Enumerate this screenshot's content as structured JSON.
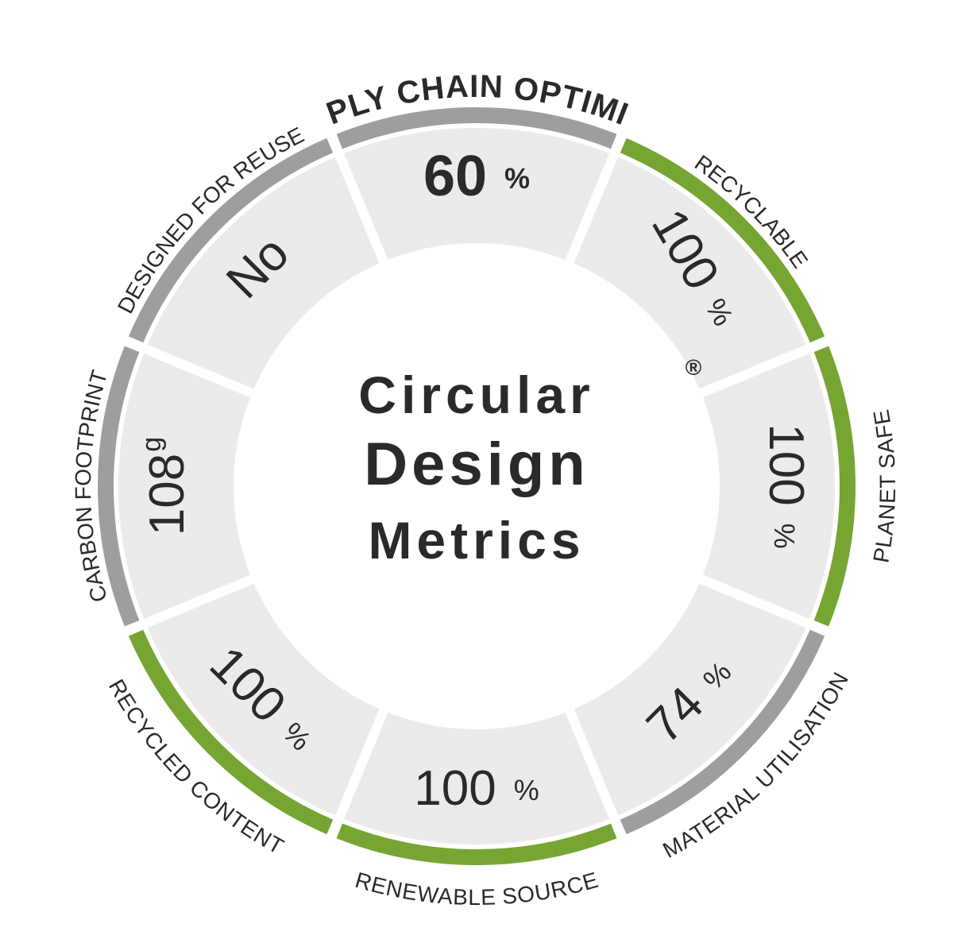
{
  "title": {
    "lines": [
      "Circular",
      "Design",
      "Metrics"
    ],
    "mark": "®"
  },
  "segments": [
    {
      "label": "SUPPLY CHAIN OPTIMIZED",
      "value": "60",
      "unit": "%"
    },
    {
      "label": "RECYCLABLE",
      "value": "100",
      "unit": "%"
    },
    {
      "label": "PLANET SAFE",
      "value": "100",
      "unit": "%"
    },
    {
      "label": "MATERIAL UTILISATION",
      "value": "74",
      "unit": "%"
    },
    {
      "label": "RENEWABLE SOURCE",
      "value": "100",
      "unit": "%"
    },
    {
      "label": "RECYCLED CONTENT",
      "value": "100",
      "unit": "%"
    },
    {
      "label": "CARBON FOOTPRINT",
      "value": "108",
      "unit": "g"
    },
    {
      "label": "DESIGNED FOR REUSE",
      "value": "No"
    }
  ]
}
